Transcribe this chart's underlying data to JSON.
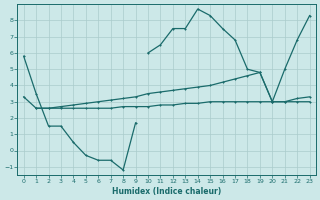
{
  "xlabel": "Humidex (Indice chaleur)",
  "background_color": "#cce8e8",
  "grid_color": "#aacccc",
  "line_color": "#1a6b6b",
  "xlim": [
    -0.5,
    23.5
  ],
  "ylim": [
    -1.5,
    9.0
  ],
  "yticks": [
    -1,
    0,
    1,
    2,
    3,
    4,
    5,
    6,
    7,
    8
  ],
  "xticks": [
    0,
    1,
    2,
    3,
    4,
    5,
    6,
    7,
    8,
    9,
    10,
    11,
    12,
    13,
    14,
    15,
    16,
    17,
    18,
    19,
    20,
    21,
    22,
    23
  ],
  "lines": [
    {
      "x": [
        0,
        1,
        2,
        3,
        4,
        5,
        6,
        7,
        8,
        9
      ],
      "y": [
        5.8,
        3.5,
        1.5,
        1.5,
        0.5,
        -0.3,
        -0.6,
        -0.6,
        -1.2,
        1.7
      ]
    },
    {
      "x": [
        0,
        1,
        2,
        3,
        4,
        5,
        6,
        7,
        8,
        9,
        10,
        11,
        12,
        13,
        14,
        15,
        16,
        17,
        18,
        19,
        20,
        21,
        22,
        23
      ],
      "y": [
        3.3,
        2.6,
        2.6,
        2.7,
        2.8,
        2.9,
        3.0,
        3.1,
        3.2,
        3.3,
        3.5,
        3.6,
        3.7,
        3.8,
        3.9,
        4.0,
        4.2,
        4.4,
        4.6,
        4.8,
        3.0,
        3.0,
        3.2,
        3.3
      ]
    },
    {
      "x": [
        1,
        2,
        3,
        4,
        5,
        6,
        7,
        8,
        9,
        10,
        11,
        12,
        13,
        14,
        15,
        16,
        17,
        18,
        19,
        20,
        21,
        22,
        23
      ],
      "y": [
        2.6,
        2.6,
        2.6,
        2.6,
        2.6,
        2.6,
        2.6,
        2.7,
        2.7,
        2.7,
        2.8,
        2.8,
        2.9,
        2.9,
        3.0,
        3.0,
        3.0,
        3.0,
        3.0,
        3.0,
        3.0,
        3.0,
        3.0
      ]
    },
    {
      "x": [
        10,
        11,
        12,
        13,
        14,
        15,
        16,
        17,
        18,
        19,
        20,
        21,
        22,
        23
      ],
      "y": [
        6.0,
        6.5,
        7.5,
        7.5,
        8.7,
        8.3,
        7.5,
        6.8,
        5.0,
        4.8,
        3.0,
        5.0,
        6.8,
        8.3
      ]
    }
  ]
}
